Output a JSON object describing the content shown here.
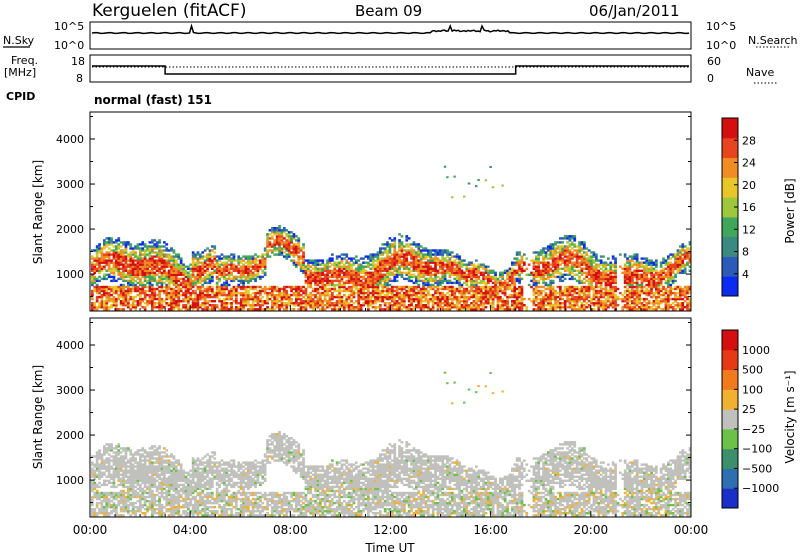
{
  "header": {
    "station": "Kerguelen (fitACF)",
    "beam": "Beam 09",
    "date": "06/Jan/2011"
  },
  "status_panels": {
    "nsky_label": "N.Sky",
    "nsearch_label": "N.Search",
    "freq_label_1": "Freq.",
    "freq_label_2": "[MHz]",
    "nave_label": "Nave",
    "cpid_label": "CPID",
    "cpid_value": "normal (fast) 151",
    "noise_ticks": [
      "10^5",
      "10^0"
    ],
    "freq_ticks": [
      "18",
      "8"
    ],
    "nave_ticks": [
      "60",
      "0"
    ]
  },
  "chart_data": [
    {
      "type": "heatmap",
      "name": "power",
      "ylabel": "Slant Range [km]",
      "y_ticks": [
        "4000",
        "3000",
        "2000",
        "1000"
      ],
      "y_tick_values": [
        4000,
        3000,
        2000,
        1000
      ],
      "ylim": [
        180,
        4600
      ],
      "xlim_hours": [
        0,
        24
      ],
      "colorbar": {
        "label": "Power [dB]",
        "ticks": [
          "28",
          "24",
          "20",
          "16",
          "12",
          "8",
          "4"
        ],
        "tick_values": [
          28,
          24,
          20,
          16,
          12,
          8,
          4
        ],
        "range": [
          0,
          32
        ],
        "colors": [
          "#0b2bf0",
          "#2c5ab9",
          "#3a8a83",
          "#3fa65b",
          "#9dc83c",
          "#e8c62a",
          "#f08c23",
          "#e6451f",
          "#d40f10"
        ]
      }
    },
    {
      "type": "heatmap",
      "name": "velocity",
      "ylabel": "Slant Range [km]",
      "y_ticks": [
        "4000",
        "3000",
        "2000",
        "1000"
      ],
      "y_tick_values": [
        4000,
        3000,
        2000,
        1000
      ],
      "ylim": [
        180,
        4600
      ],
      "xlim_hours": [
        0,
        24
      ],
      "colorbar": {
        "label": "Velocity [m s⁻¹]",
        "ticks": [
          "1000",
          "500",
          "100",
          "25",
          "−25",
          "−100",
          "−500",
          "−1000"
        ],
        "colors": [
          "#1a2fc8",
          "#2d6fb0",
          "#3d8f6c",
          "#6bc14a",
          "#c0c0bc",
          "#f0b030",
          "#f07a1c",
          "#e63a17",
          "#d40f10"
        ]
      }
    }
  ],
  "time_axis": {
    "label": "Time UT",
    "ticks": [
      "00:00",
      "04:00",
      "08:00",
      "12:00",
      "16:00",
      "20:00",
      "00:00"
    ]
  }
}
